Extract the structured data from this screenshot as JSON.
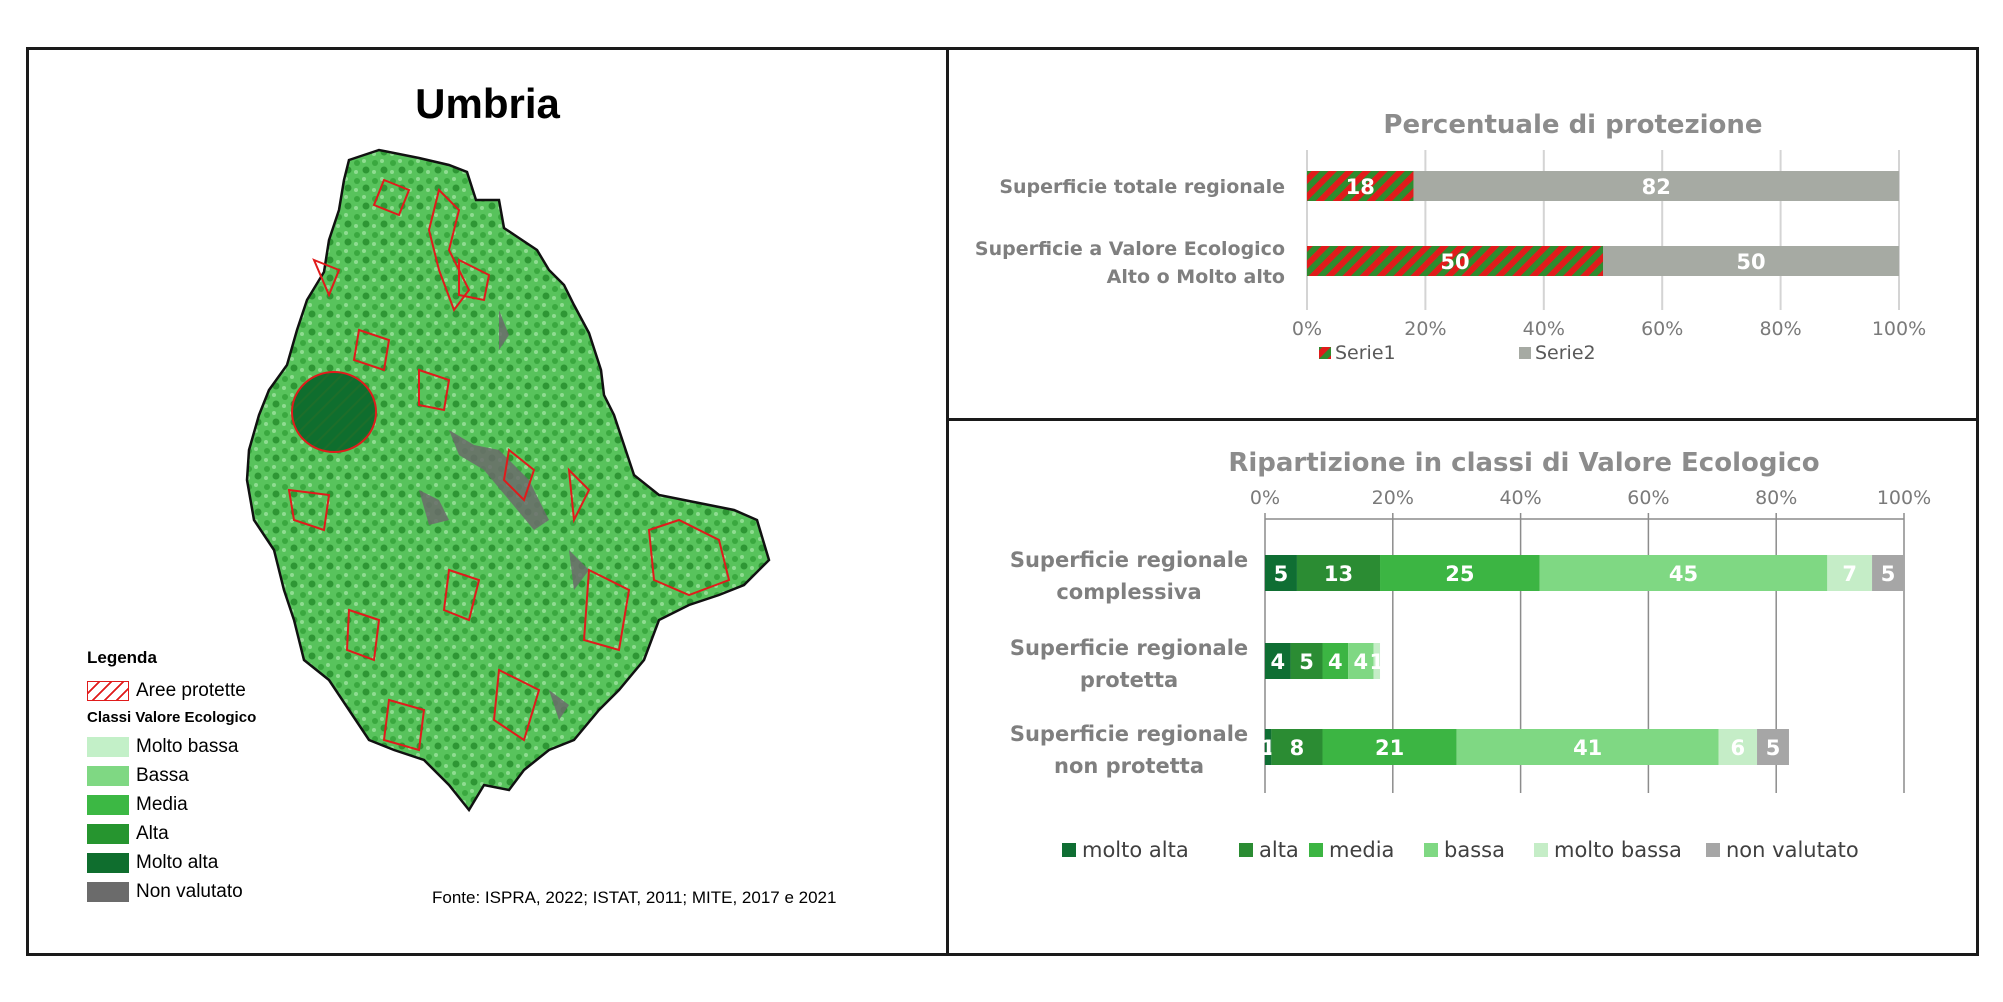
{
  "map": {
    "title": "Umbria",
    "legend_title": "Legenda",
    "protected_label": "Aree protette",
    "classes_title": "Classi Valore Ecologico",
    "classes": [
      {
        "label": "Molto bassa",
        "color": "#c3f0c8"
      },
      {
        "label": "Bassa",
        "color": "#7fd883"
      },
      {
        "label": "Media",
        "color": "#3cb844"
      },
      {
        "label": "Alta",
        "color": "#26952f"
      },
      {
        "label": "Molto alta",
        "color": "#0f6e2e"
      },
      {
        "label": "Non valutato",
        "color": "#6b6b6b"
      }
    ],
    "protected_color": "#e01b1b",
    "source": "Fonte: ISPRA, 2022; ISTAT, 2011; MITE, 2017 e 2021"
  },
  "chart_data": [
    {
      "type": "bar",
      "orientation": "horizontal",
      "stacked": true,
      "title": "Percentuale di protezione",
      "categories": [
        "Superficie totale regionale",
        "Superficie a Valore Ecologico Alto o Molto alto"
      ],
      "series": [
        {
          "name": "Serie1",
          "values": [
            18,
            50
          ],
          "color": "#e01b1b",
          "pattern_color": "#2e8b2e"
        },
        {
          "name": "Serie2",
          "values": [
            82,
            50
          ],
          "color": "#a6aaa3"
        }
      ],
      "xlim": [
        0,
        100
      ],
      "x_ticks": [
        "0%",
        "20%",
        "40%",
        "60%",
        "80%",
        "100%"
      ],
      "grid": true,
      "legend": "bottom"
    },
    {
      "type": "bar",
      "orientation": "horizontal",
      "stacked": true,
      "title": "Ripartizione in classi di Valore Ecologico",
      "categories": [
        "Superficie regionale complessiva",
        "Superficie regionale protetta",
        "Superficie regionale non protetta"
      ],
      "series": [
        {
          "name": "molto alta",
          "values": [
            5,
            4,
            1
          ],
          "color": "#0f6e33"
        },
        {
          "name": "alta",
          "values": [
            13,
            5,
            8
          ],
          "color": "#2b8c33"
        },
        {
          "name": "media",
          "values": [
            25,
            4,
            21
          ],
          "color": "#3cb543"
        },
        {
          "name": "bassa",
          "values": [
            45,
            4,
            41
          ],
          "color": "#7fd883"
        },
        {
          "name": "molto bassa",
          "values": [
            7,
            1,
            6
          ],
          "color": "#c5edc7"
        },
        {
          "name": "non valutato",
          "values": [
            5,
            0,
            5
          ],
          "color": "#a6a6a6"
        }
      ],
      "xlim": [
        0,
        100
      ],
      "x_ticks": [
        "0%",
        "20%",
        "40%",
        "60%",
        "80%",
        "100%"
      ],
      "x_axis_position": "top",
      "grid": true,
      "legend": "bottom"
    }
  ]
}
